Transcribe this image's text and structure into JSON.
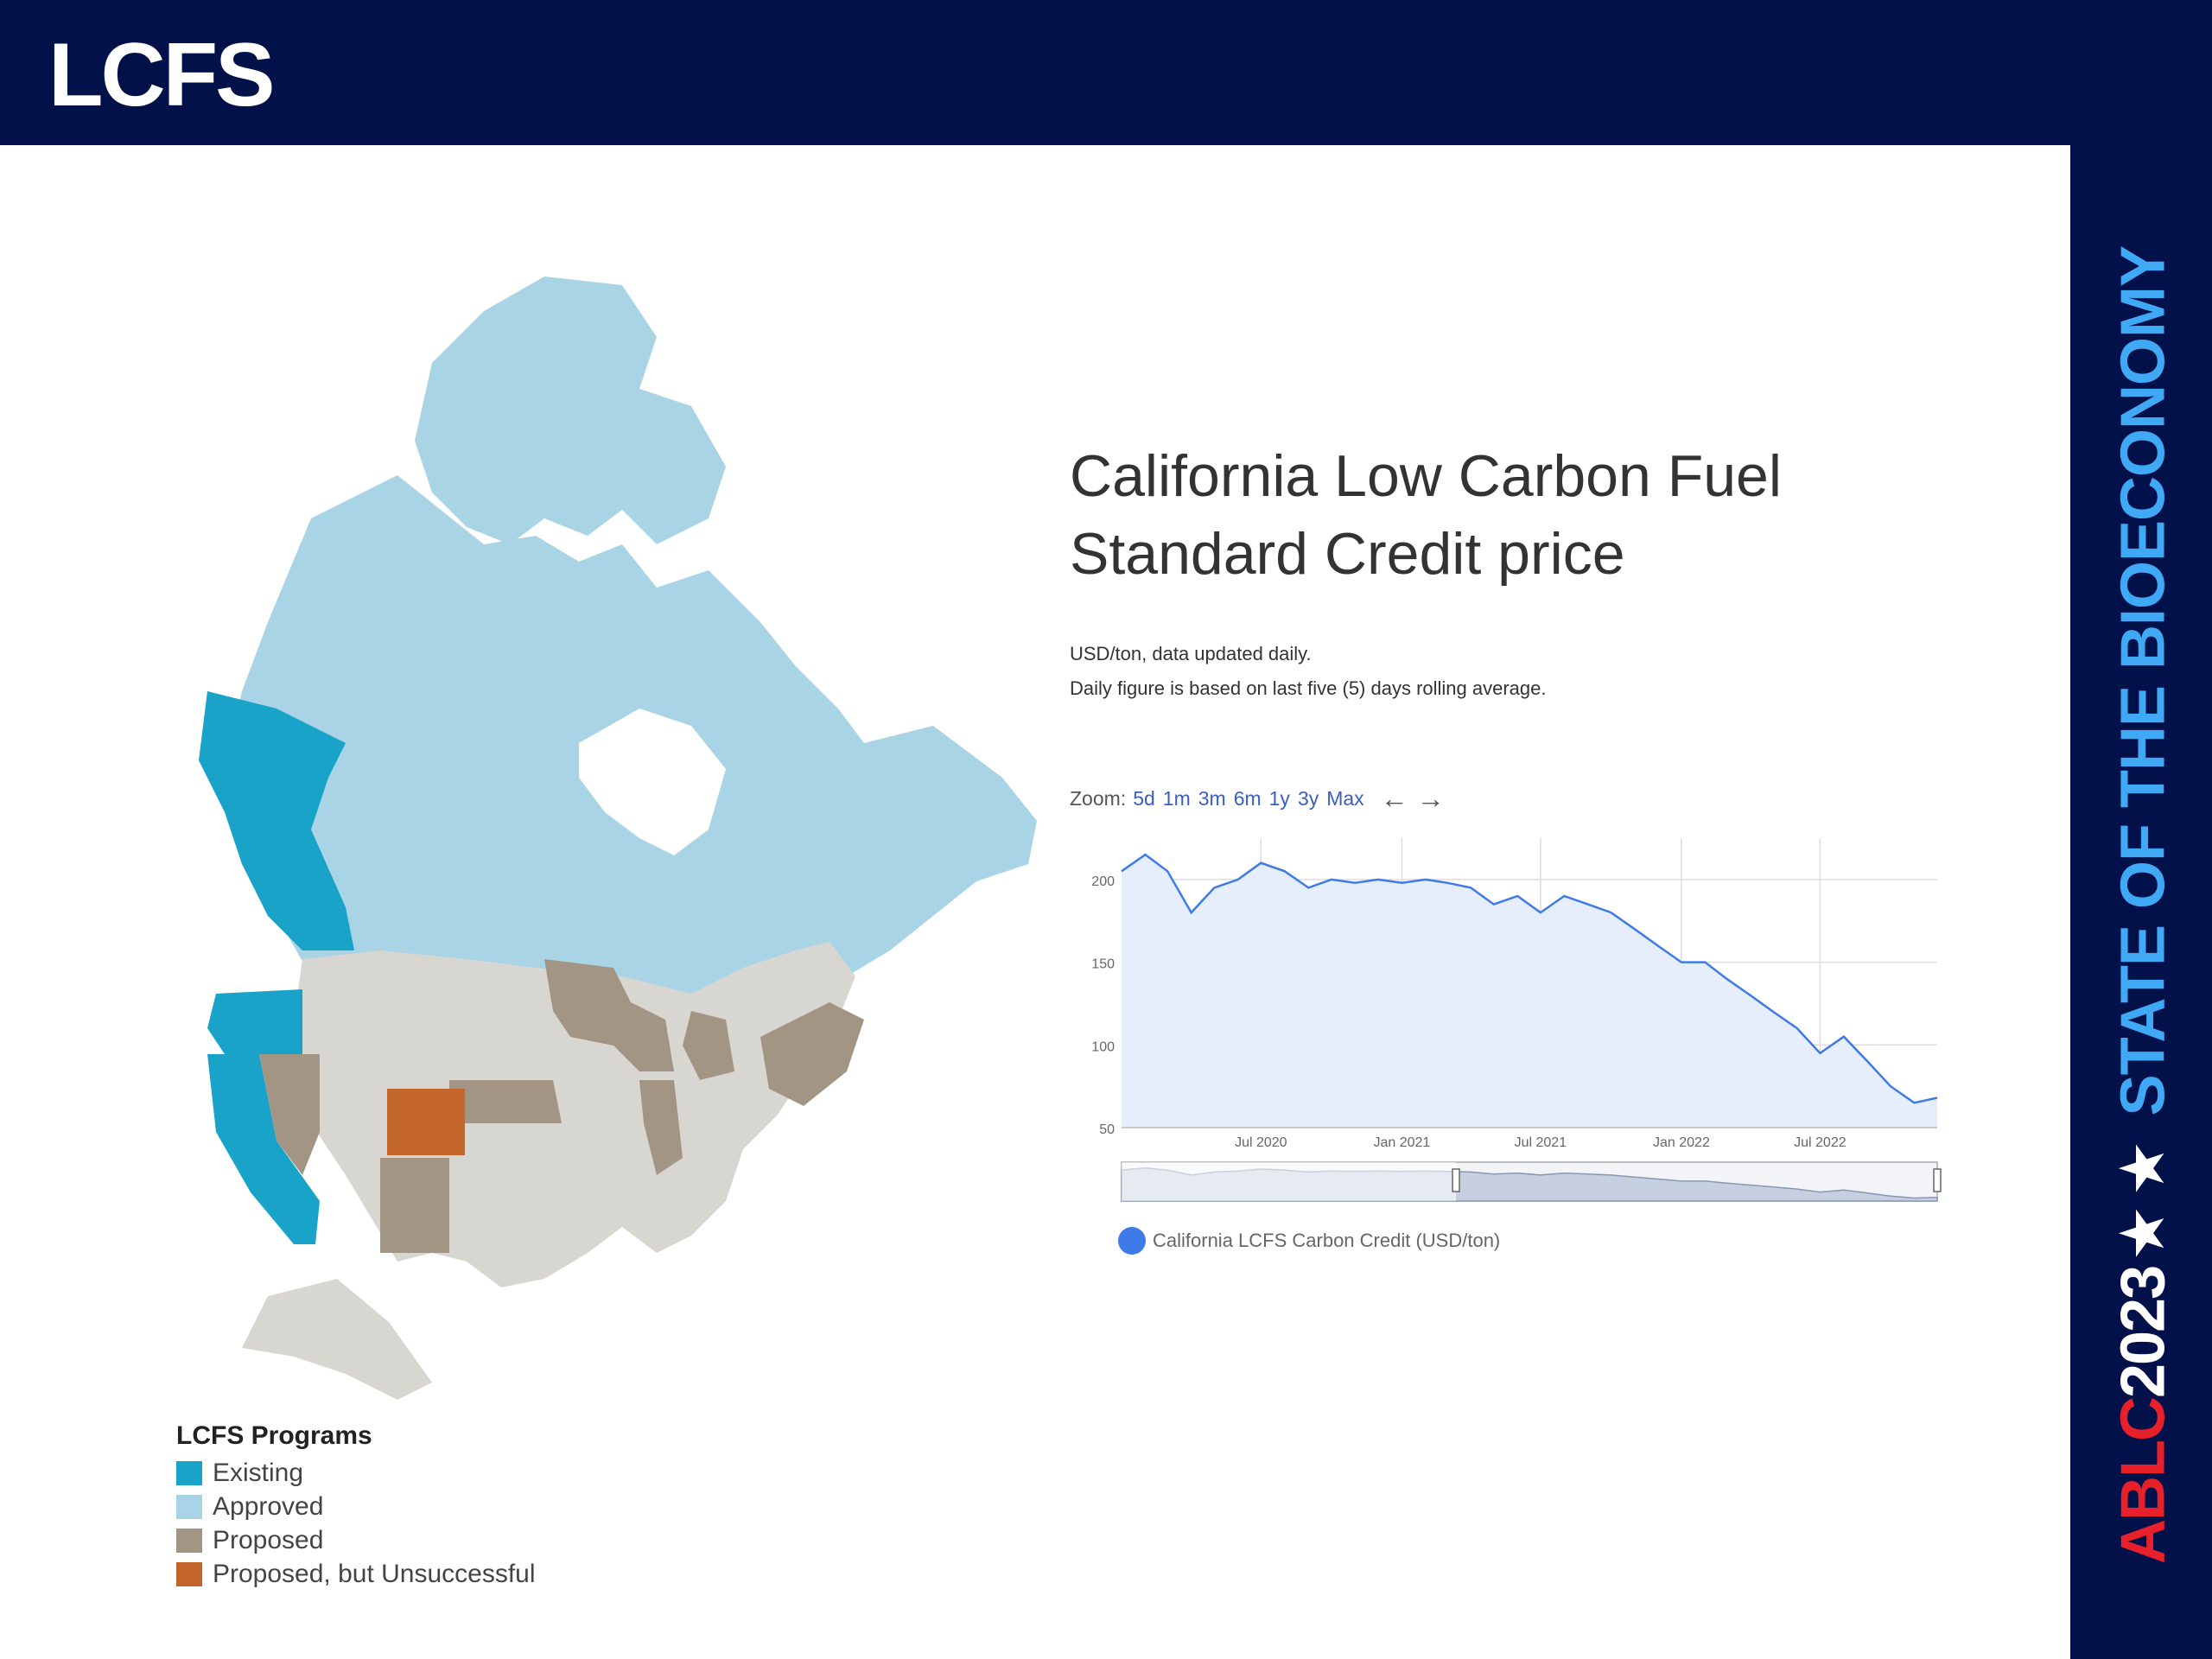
{
  "slide": {
    "title": "LCFS"
  },
  "brand": {
    "ablc": "ABLC",
    "year": "2023",
    "stars": "★ ★",
    "tagline": "STATE OF THE BIOECONOMY"
  },
  "map_legend": {
    "title": "LCFS Programs",
    "items": [
      {
        "label": "Existing",
        "color": "#1aa3c9"
      },
      {
        "label": "Approved",
        "color": "#a9d4e6"
      },
      {
        "label": "Proposed",
        "color": "#a39584"
      },
      {
        "label": "Proposed, but Unsuccessful",
        "color": "#c4662b"
      }
    ]
  },
  "chart_header": {
    "title_line1": "California Low Carbon Fuel",
    "title_line2": "Standard Credit price",
    "subtitle1": "USD/ton, data updated daily.",
    "subtitle2": "Daily figure is based on last five (5) days rolling average."
  },
  "zoom": {
    "label": "Zoom:",
    "options": [
      "5d",
      "1m",
      "3m",
      "6m",
      "1y",
      "3y",
      "Max"
    ],
    "back": "←",
    "forward": "→"
  },
  "chart_data": {
    "type": "area",
    "series": [
      {
        "name": "California LCFS Carbon Credit (USD/ton)",
        "color": "#3f7be8",
        "x": [
          "2020-01-01",
          "2020-02-01",
          "2020-03-01",
          "2020-04-01",
          "2020-05-01",
          "2020-06-01",
          "2020-07-01",
          "2020-08-01",
          "2020-09-01",
          "2020-10-01",
          "2020-11-01",
          "2020-12-01",
          "2021-01-01",
          "2021-02-01",
          "2021-03-01",
          "2021-04-01",
          "2021-05-01",
          "2021-06-01",
          "2021-07-01",
          "2021-08-01",
          "2021-09-01",
          "2021-10-01",
          "2021-11-01",
          "2021-12-01",
          "2022-01-01",
          "2022-02-01",
          "2022-03-01",
          "2022-04-01",
          "2022-05-01",
          "2022-06-01",
          "2022-07-01",
          "2022-08-01",
          "2022-09-01",
          "2022-10-01",
          "2022-11-01",
          "2022-12-01"
        ],
        "values": [
          205,
          215,
          205,
          180,
          195,
          200,
          210,
          205,
          195,
          200,
          198,
          200,
          198,
          200,
          198,
          195,
          185,
          190,
          180,
          190,
          185,
          180,
          170,
          160,
          150,
          150,
          140,
          130,
          120,
          110,
          95,
          105,
          90,
          75,
          65,
          68
        ]
      }
    ],
    "x_ticks": [
      "Jul 2020",
      "Jan 2021",
      "Jul 2021",
      "Jan 2022",
      "Jul 2022"
    ],
    "y_ticks": [
      50,
      100,
      150,
      200
    ],
    "ylim": [
      50,
      225
    ],
    "grid": true,
    "legend_position": "bottom-left",
    "fill_color": "#e6eefb"
  }
}
